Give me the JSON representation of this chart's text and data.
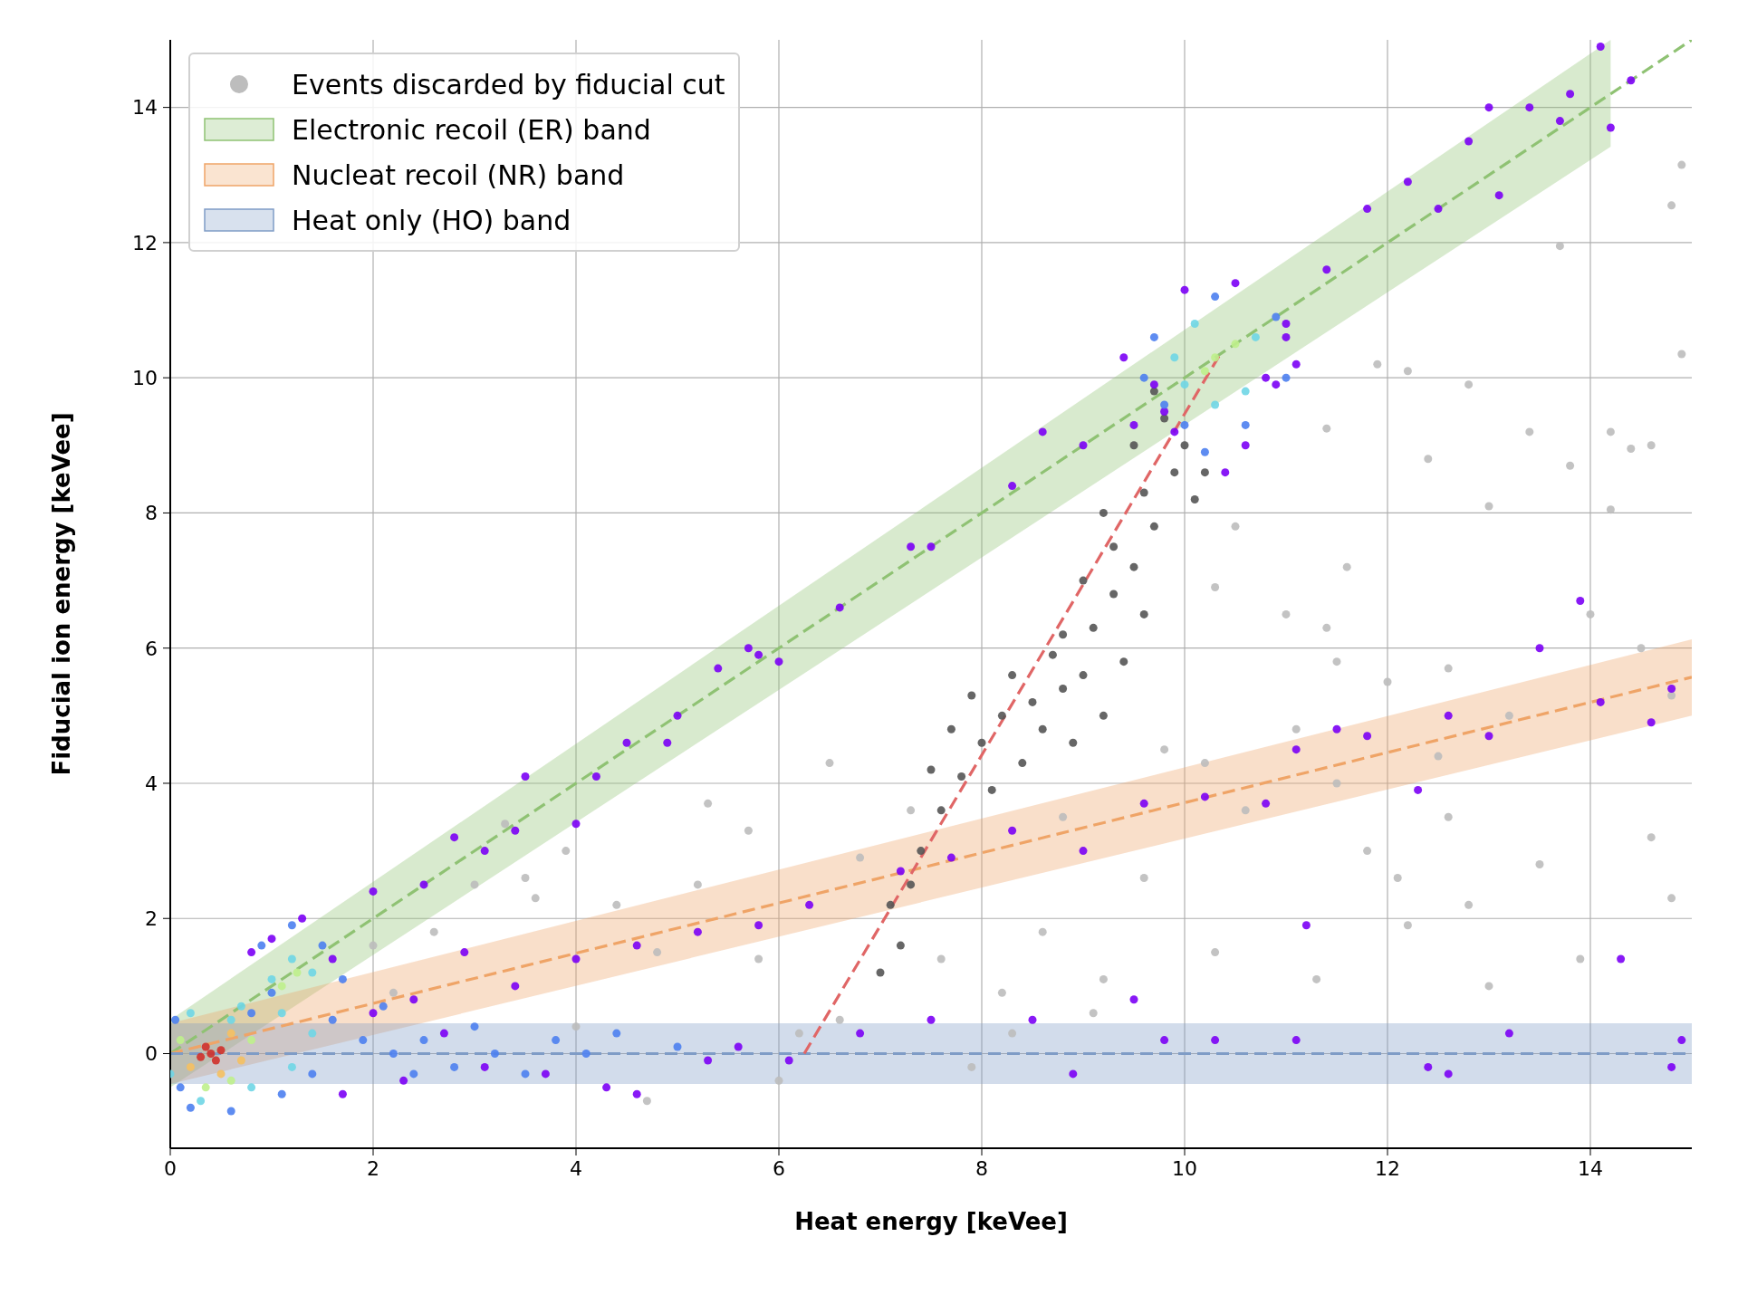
{
  "chart_data": {
    "type": "scatter",
    "xlabel": "Heat energy [keVee]",
    "ylabel": "Fiducial ion energy [keVee]",
    "xlim": [
      0,
      15
    ],
    "ylim": [
      -1.4,
      15
    ],
    "xticks": [
      0,
      2,
      4,
      6,
      8,
      10,
      12,
      14
    ],
    "yticks": [
      0,
      2,
      4,
      6,
      8,
      10,
      12,
      14
    ],
    "grid": true,
    "legend": "top left",
    "marker": "circle",
    "series": [
      {
        "type": "line",
        "name": "Electronic recoil (ER) band",
        "color": "#8fc273",
        "line_style": "dashed",
        "marker": "none",
        "x": [
          0,
          14.2,
          15
        ],
        "values": [
          0,
          14.2,
          15
        ],
        "lower": [
          -0.5,
          13.42,
          null
        ],
        "upper": [
          0.5,
          15,
          null
        ]
      },
      {
        "type": "line",
        "name": "Nucleat recoil (NR) band",
        "color": "#efa467",
        "line_style": "dashed",
        "marker": "none",
        "x": [
          0,
          15
        ],
        "values": [
          0,
          5.57
        ],
        "lower": [
          -0.45,
          5.0
        ],
        "upper": [
          0.45,
          6.13
        ]
      },
      {
        "type": "line",
        "name": "Heat only (HO) band",
        "color": "#7f9cc6",
        "line_style": "dashed",
        "marker": "none",
        "x": [
          0,
          15
        ],
        "values": [
          0,
          0
        ],
        "lower": [
          -0.45,
          -0.45
        ],
        "upper": [
          0.45,
          0.45
        ]
      },
      {
        "name": "Events discarded by fiducial cut",
        "color": "#bdbdbd",
        "x": [
          14.9,
          14.8,
          13.7,
          14.9,
          11.9,
          12.2,
          12.8,
          11.4,
          13.4,
          14.2,
          14.6,
          14.4,
          13.8,
          14.2,
          13.0,
          12.4,
          11.6,
          11.4,
          10.5,
          10.3,
          11.0,
          11.5,
          12.0,
          12.6,
          14.0,
          14.5,
          14.8,
          13.2,
          12.5,
          11.1,
          11.5,
          10.6,
          11.8,
          12.1,
          12.8,
          13.5,
          14.6,
          14.8,
          12.2,
          13.9,
          11.3,
          10.3,
          9.6,
          9.2,
          8.6,
          8.2,
          7.6,
          6.6,
          6.2,
          5.8,
          5.2,
          4.8,
          4.4,
          3.9,
          3.6,
          3.5,
          3.3,
          3.0,
          2.6,
          2.2,
          2.0,
          4.0,
          4.7,
          6.0,
          7.9,
          8.3,
          9.1,
          10.2,
          9.8,
          13.0,
          12.6,
          8.8,
          7.3,
          6.8,
          6.5,
          5.7,
          5.3
        ],
        "values": [
          13.15,
          12.55,
          11.95,
          10.35,
          10.2,
          10.1,
          9.9,
          9.25,
          9.2,
          9.2,
          9.0,
          8.95,
          8.7,
          8.05,
          8.1,
          8.8,
          7.2,
          6.3,
          7.8,
          6.9,
          6.5,
          5.8,
          5.5,
          5.7,
          6.5,
          6.0,
          5.3,
          5.0,
          4.4,
          4.8,
          4.0,
          3.6,
          3.0,
          2.6,
          2.2,
          2.8,
          3.2,
          2.3,
          1.9,
          1.4,
          1.1,
          1.5,
          2.6,
          1.1,
          1.8,
          0.9,
          1.4,
          0.5,
          0.3,
          1.4,
          2.5,
          1.5,
          2.2,
          3.0,
          2.3,
          2.6,
          3.4,
          2.5,
          1.8,
          0.9,
          1.6,
          0.4,
          -0.7,
          -0.4,
          -0.2,
          0.3,
          0.6,
          4.3,
          4.5,
          1.0,
          3.5,
          3.5,
          3.6,
          2.9,
          4.3,
          3.3,
          3.7
        ]
      },
      {
        "color": "#555555",
        "x": [
          8.5,
          8.2,
          8.8,
          8.0,
          8.6,
          9.0,
          9.2,
          8.3,
          8.7,
          7.9,
          8.9,
          9.4,
          9.1,
          9.3,
          9.5,
          9.7,
          9.6,
          9.9,
          10.0,
          9.8,
          9.5,
          9.3,
          9.0,
          9.6,
          10.1,
          7.8,
          7.6,
          7.4,
          7.3,
          7.1,
          7.5,
          7.7,
          8.1,
          7.2,
          7.0,
          8.4,
          8.8,
          9.2,
          10.2,
          9.7
        ],
        "values": [
          5.2,
          5.0,
          5.4,
          4.6,
          4.8,
          5.6,
          5.0,
          5.6,
          5.9,
          5.3,
          4.6,
          5.8,
          6.3,
          6.8,
          7.2,
          7.8,
          8.3,
          8.6,
          9.0,
          9.4,
          9.0,
          7.5,
          7.0,
          6.5,
          8.2,
          4.1,
          3.6,
          3.0,
          2.5,
          2.2,
          4.2,
          4.8,
          3.9,
          1.6,
          1.2,
          4.3,
          6.2,
          8.0,
          8.6,
          9.8
        ]
      },
      {
        "color": "#7b00f5",
        "x": [
          14.1,
          13.4,
          14.4,
          13.0,
          13.8,
          14.2,
          13.7,
          12.8,
          13.1,
          12.5,
          12.2,
          11.8,
          11.4,
          11.0,
          11.1,
          10.9,
          9.7,
          9.5,
          9.0,
          8.6,
          8.3,
          7.5,
          7.3,
          6.6,
          6.0,
          5.8,
          5.7,
          5.4,
          5.0,
          4.9,
          4.5,
          4.2,
          4.0,
          3.5,
          3.4,
          3.1,
          2.8,
          2.5,
          2.0,
          14.8,
          14.6,
          14.1,
          13.5,
          13.0,
          12.6,
          12.3,
          11.8,
          11.5,
          11.1,
          10.8,
          10.2,
          9.6,
          9.0,
          8.3,
          7.7,
          7.2,
          6.3,
          5.8,
          5.2,
          4.6,
          4.0,
          3.4,
          2.9,
          2.4,
          2.0,
          13.9,
          11.2,
          12.4,
          12.6,
          14.3,
          14.8,
          14.9,
          13.2,
          11.1,
          10.3,
          9.5,
          8.9,
          8.5,
          9.8,
          7.5,
          6.8,
          6.1,
          5.6,
          5.3,
          4.6,
          4.3,
          3.7,
          3.1,
          2.7,
          2.3,
          1.7,
          10.8,
          10.6,
          10.4,
          10.0,
          9.4,
          9.8,
          9.9,
          11.0,
          10.5,
          1.3,
          1.0,
          0.8,
          1.6
        ],
        "values": [
          14.9,
          14.0,
          14.4,
          14.0,
          14.2,
          13.7,
          13.8,
          13.5,
          12.7,
          12.5,
          12.9,
          12.5,
          11.6,
          10.8,
          10.2,
          9.9,
          9.9,
          9.3,
          9.0,
          9.2,
          8.4,
          7.5,
          7.5,
          6.6,
          5.8,
          5.9,
          6.0,
          5.7,
          5.0,
          4.6,
          4.6,
          4.1,
          3.4,
          4.1,
          3.3,
          3.0,
          3.2,
          2.5,
          2.4,
          5.4,
          4.9,
          5.2,
          6.0,
          4.7,
          5.0,
          3.9,
          4.7,
          4.8,
          4.5,
          3.7,
          3.8,
          3.7,
          3.0,
          3.3,
          2.9,
          2.7,
          2.2,
          1.9,
          1.8,
          1.6,
          1.4,
          1.0,
          1.5,
          0.8,
          0.6,
          6.7,
          1.9,
          -0.2,
          -0.3,
          1.4,
          -0.2,
          0.2,
          0.3,
          0.2,
          0.2,
          0.8,
          -0.3,
          0.5,
          0.2,
          0.5,
          0.3,
          -0.1,
          0.1,
          -0.1,
          -0.6,
          -0.5,
          -0.3,
          -0.2,
          0.3,
          -0.4,
          -0.6,
          10.0,
          9.0,
          8.6,
          11.3,
          10.3,
          9.5,
          9.2,
          10.6,
          11.4,
          2.0,
          1.7,
          1.5,
          1.4
        ]
      },
      {
        "color": "#4d7ff0",
        "x": [
          10.3,
          9.7,
          9.6,
          10.9,
          11.0,
          10.0,
          10.6,
          10.2,
          9.8,
          1.2,
          0.9,
          1.5,
          1.7,
          1.6,
          1.9,
          2.2,
          2.5,
          2.8,
          3.2,
          3.5,
          3.8,
          1.4,
          1.1,
          0.6,
          0.2,
          2.1,
          2.4,
          1.0,
          0.8,
          0.05,
          0.1,
          3.0,
          4.1,
          4.4,
          5.0
        ],
        "values": [
          11.2,
          10.6,
          10.0,
          10.9,
          10.0,
          9.3,
          9.3,
          8.9,
          9.6,
          1.9,
          1.6,
          1.6,
          1.1,
          0.5,
          0.2,
          0.0,
          0.2,
          -0.2,
          0.0,
          -0.3,
          0.2,
          -0.3,
          -0.6,
          -0.85,
          -0.8,
          0.7,
          -0.3,
          0.9,
          0.6,
          0.5,
          -0.5,
          0.4,
          0.0,
          0.3,
          0.1
        ]
      },
      {
        "color": "#6fd6e6",
        "x": [
          10.1,
          10.7,
          10.0,
          10.6,
          10.3,
          9.9,
          1.2,
          1.0,
          1.4,
          1.1,
          0.7,
          0.2,
          0.0,
          0.3,
          0.8,
          1.2,
          1.4,
          0.6
        ],
        "values": [
          10.8,
          10.6,
          9.9,
          9.8,
          9.6,
          10.3,
          1.4,
          1.1,
          1.2,
          0.6,
          0.7,
          0.6,
          -0.3,
          -0.7,
          -0.5,
          -0.2,
          0.3,
          0.5
        ]
      },
      {
        "color": "#bff08c",
        "x": [
          10.3,
          10.5,
          10.2,
          1.25,
          1.1,
          0.6,
          0.8,
          0.1,
          0.35
        ],
        "values": [
          10.3,
          10.5,
          10.1,
          1.2,
          1.0,
          -0.4,
          0.2,
          0.2,
          -0.5
        ]
      },
      {
        "color": "#f5c060",
        "x": [
          0.6,
          0.2,
          0.5,
          0.7
        ],
        "values": [
          0.3,
          -0.2,
          -0.3,
          -0.1
        ]
      },
      {
        "color": "#d0302a",
        "x": [
          0.4,
          0.35,
          0.45,
          0.3,
          0.5
        ],
        "values": [
          0.0,
          0.1,
          -0.1,
          -0.05,
          0.05
        ]
      },
      {
        "type": "line",
        "color": "#e06666",
        "line_style": "dashed",
        "marker": "none",
        "x": [
          6.25,
          10.35
        ],
        "values": [
          0,
          10.35
        ]
      }
    ]
  }
}
